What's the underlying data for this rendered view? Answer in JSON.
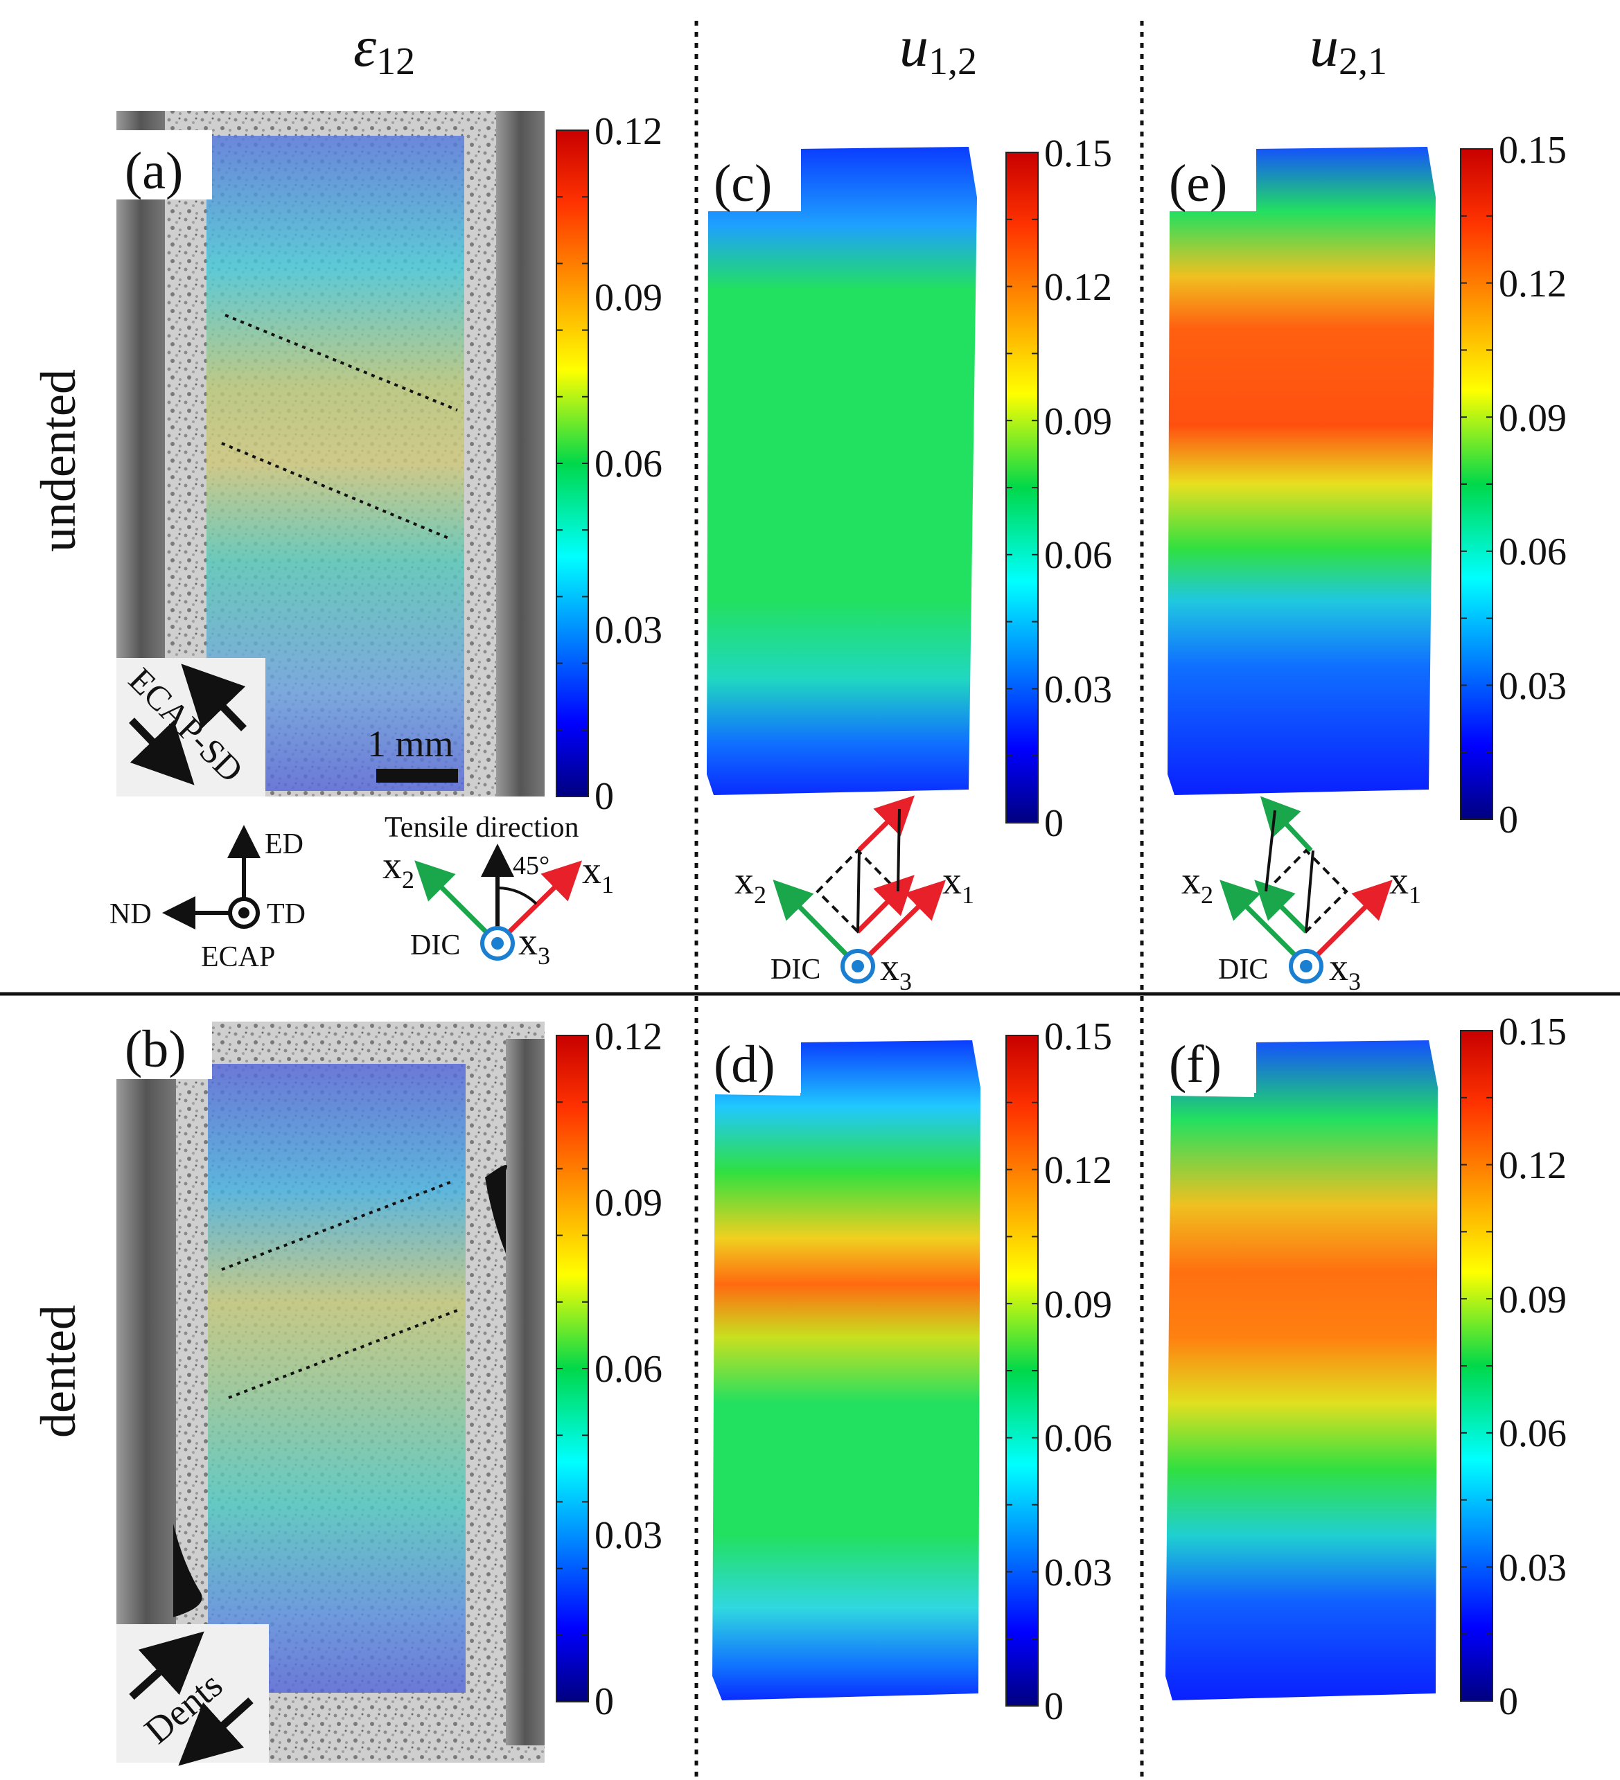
{
  "columns": {
    "col1": {
      "sym": "ε",
      "sub": "12"
    },
    "col2": {
      "sym": "u",
      "sub": "1,2"
    },
    "col3": {
      "sym": "u",
      "sub": "2,1"
    }
  },
  "rows": {
    "top": "undented",
    "bottom": "dented"
  },
  "panels": {
    "a": "(a)",
    "b": "(b)",
    "c": "(c)",
    "d": "(d)",
    "e": "(e)",
    "f": "(f)"
  },
  "colorbars": {
    "strain_ticks": [
      "0.12",
      "0.09",
      "0.06",
      "0.03",
      "0"
    ],
    "grad_ticks": [
      "0.15",
      "0.12",
      "0.09",
      "0.06",
      "0.03",
      "0"
    ]
  },
  "annotations": {
    "ecap_sd": "ECAP-SD",
    "scale_bar": "1 mm",
    "dents": "Dents",
    "ed": "ED",
    "nd": "ND",
    "td": "TD",
    "ecap": "ECAP",
    "tensile_direction": "Tensile direction",
    "angle": "45°",
    "dic": "DIC",
    "x1": {
      "sym": "x",
      "sub": "1"
    },
    "x2": {
      "sym": "x",
      "sub": "2"
    },
    "x3": {
      "sym": "x",
      "sub": "3"
    }
  },
  "colors": {
    "x1": "#e8202a",
    "x2": "#1aa64b",
    "x3": "#1a7fd0"
  }
}
